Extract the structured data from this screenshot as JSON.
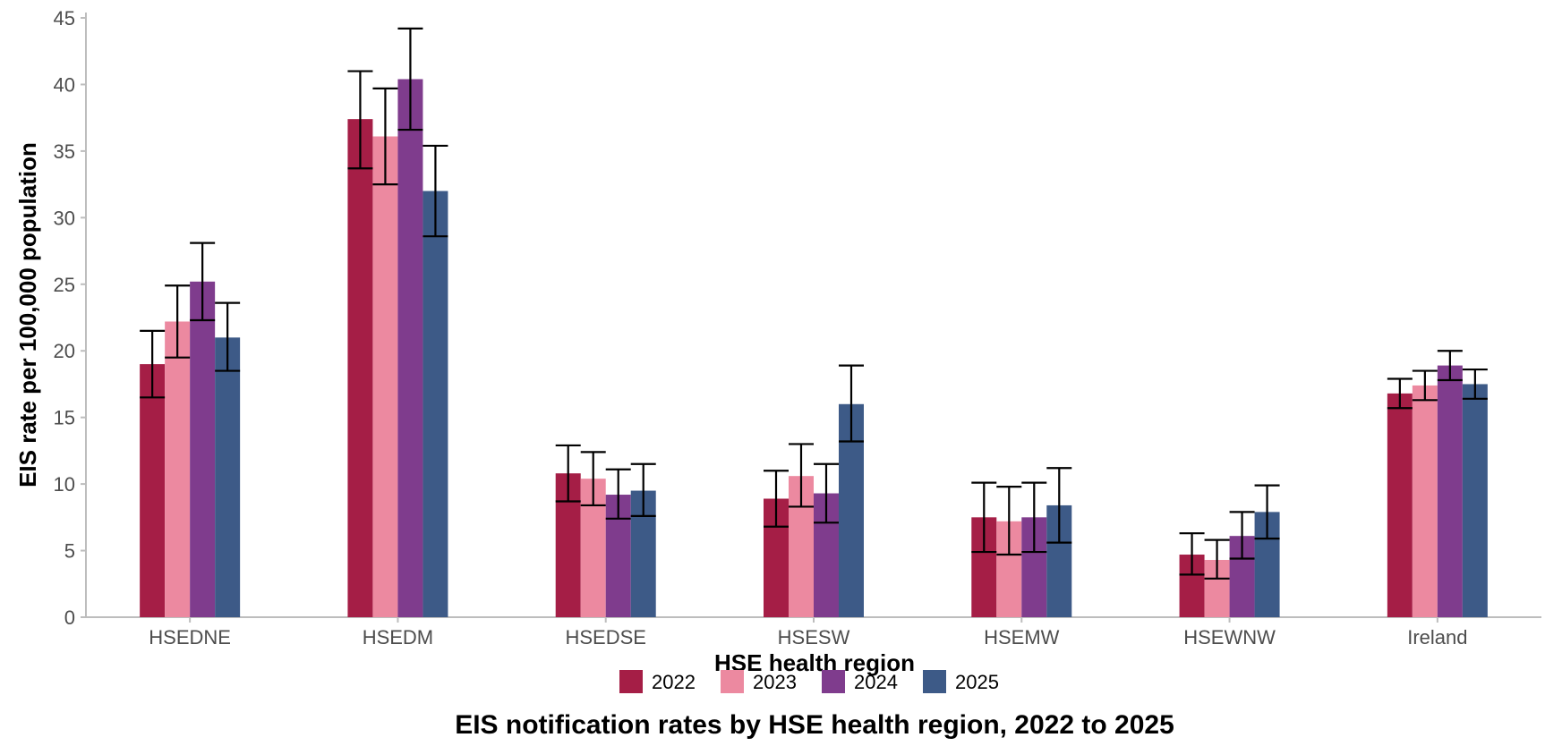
{
  "chart_data": {
    "type": "bar",
    "title": "EIS notification rates by HSE health region, 2022 to 2025",
    "xlabel": "HSE health region",
    "ylabel": "EIS rate per 100,000 population",
    "ylim": [
      0,
      45
    ],
    "yticks": [
      0,
      5,
      10,
      15,
      20,
      25,
      30,
      35,
      40,
      45
    ],
    "grid": false,
    "legend_position": "bottom",
    "error_bars": true,
    "categories": [
      "HSEDNE",
      "HSEDM",
      "HSEDSE",
      "HSESW",
      "HSEMW",
      "HSEWNW",
      "Ireland"
    ],
    "series": [
      {
        "name": "2022",
        "color": "#a51e46",
        "values": [
          19.0,
          37.4,
          10.8,
          8.9,
          7.5,
          4.7,
          16.8
        ],
        "lower": [
          16.5,
          33.7,
          8.7,
          6.8,
          4.9,
          3.2,
          15.7
        ],
        "upper": [
          21.5,
          41.0,
          12.9,
          11.0,
          10.1,
          6.3,
          17.9
        ]
      },
      {
        "name": "2023",
        "color": "#ec89a0",
        "values": [
          22.2,
          36.1,
          10.4,
          10.6,
          7.2,
          4.3,
          17.4
        ],
        "lower": [
          19.5,
          32.5,
          8.4,
          8.3,
          4.7,
          2.9,
          16.3
        ],
        "upper": [
          24.9,
          39.7,
          12.4,
          13.0,
          9.8,
          5.8,
          18.5
        ]
      },
      {
        "name": "2024",
        "color": "#7f3c8d",
        "values": [
          25.2,
          40.4,
          9.2,
          9.3,
          7.5,
          6.1,
          18.9
        ],
        "lower": [
          22.3,
          36.6,
          7.4,
          7.1,
          4.9,
          4.4,
          17.8
        ],
        "upper": [
          28.1,
          44.2,
          11.1,
          11.5,
          10.1,
          7.9,
          20.0
        ]
      },
      {
        "name": "2025",
        "color": "#3d5a87",
        "values": [
          21.0,
          32.0,
          9.5,
          16.0,
          8.4,
          7.9,
          17.5
        ],
        "lower": [
          18.5,
          28.6,
          7.6,
          13.2,
          5.6,
          5.9,
          16.4
        ],
        "upper": [
          23.6,
          35.4,
          11.5,
          18.9,
          11.2,
          9.9,
          18.6
        ]
      }
    ]
  }
}
